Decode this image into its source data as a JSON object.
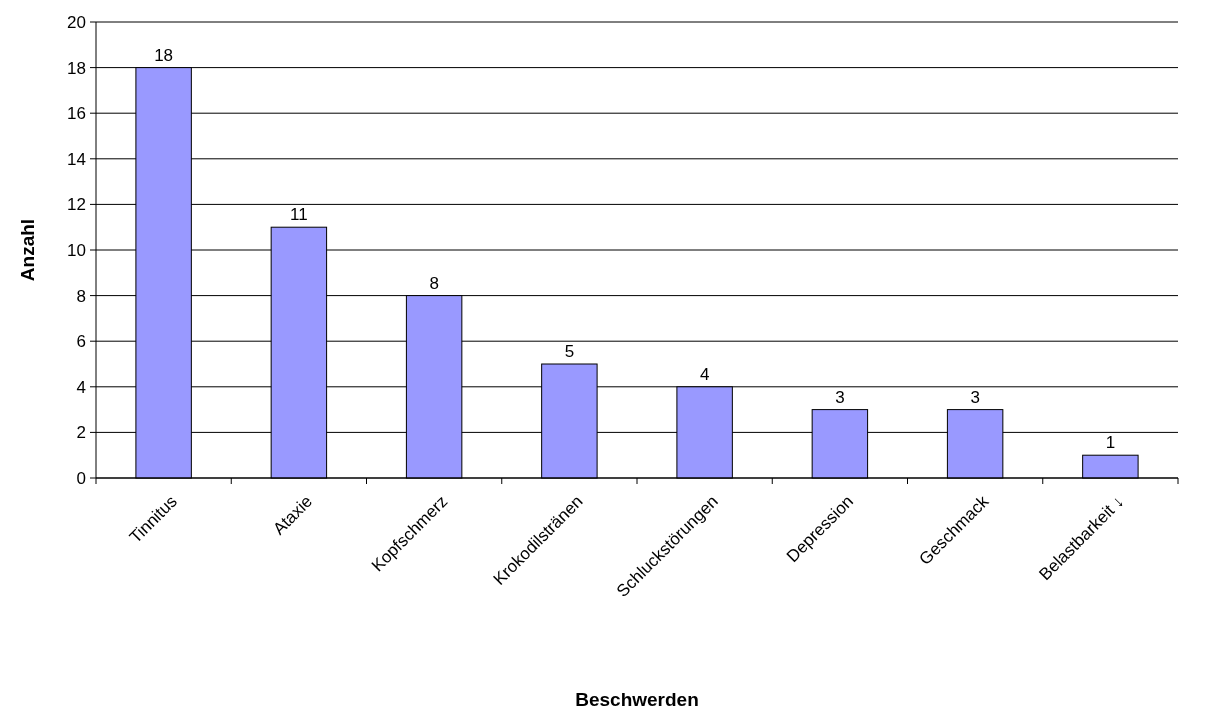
{
  "chart_data": {
    "type": "bar",
    "xlabel": "Beschwerden",
    "ylabel": "Anzahl",
    "categories": [
      "Tinnitus",
      "Ataxie",
      "Kopfschmerz",
      "Krokodilstränen",
      "Schluckstörungen",
      "Depression",
      "Geschmack",
      "Belastbarkeit ↓"
    ],
    "values": [
      18,
      11,
      8,
      5,
      4,
      3,
      3,
      1
    ],
    "color": "#9999ff",
    "ylim": [
      0,
      20
    ],
    "yticks": [
      0,
      2,
      4,
      6,
      8,
      10,
      12,
      14,
      16,
      18,
      20
    ],
    "grid": "y",
    "data_labels": true
  }
}
